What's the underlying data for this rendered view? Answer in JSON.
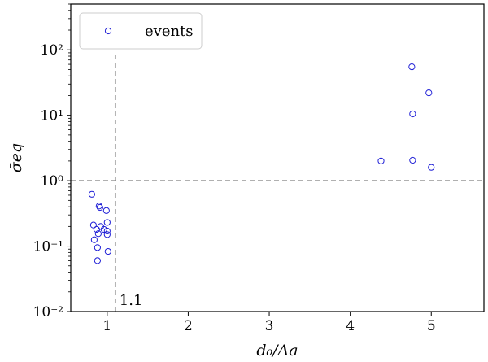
{
  "chart_data": {
    "type": "scatter",
    "xlabel": "d₀/Δa",
    "ylabel": "σ̄eq",
    "yscale": "log",
    "xlim": [
      0.55,
      5.65
    ],
    "ylim": [
      0.01,
      500
    ],
    "xticks": [
      {
        "value": 1,
        "label": "1"
      },
      {
        "value": 2,
        "label": "2"
      },
      {
        "value": 3,
        "label": "3"
      },
      {
        "value": 4,
        "label": "4"
      },
      {
        "value": 5,
        "label": "5"
      }
    ],
    "yticks": [
      {
        "value": 0.01,
        "label": "10⁻²"
      },
      {
        "value": 0.1,
        "label": "10⁻¹"
      },
      {
        "value": 1,
        "label": "10⁰"
      },
      {
        "value": 10,
        "label": "10¹"
      },
      {
        "value": 100,
        "label": "10²"
      }
    ],
    "grid": false,
    "legend": {
      "placement": "top-left",
      "entries": [
        "events"
      ]
    },
    "series": [
      {
        "name": "events",
        "color": "#1f1fd6",
        "marker": "open-circle",
        "points": [
          {
            "x": 0.81,
            "y": 0.62
          },
          {
            "x": 0.83,
            "y": 0.21
          },
          {
            "x": 0.84,
            "y": 0.125
          },
          {
            "x": 0.87,
            "y": 0.18
          },
          {
            "x": 0.88,
            "y": 0.095
          },
          {
            "x": 0.88,
            "y": 0.06
          },
          {
            "x": 0.89,
            "y": 0.155
          },
          {
            "x": 0.9,
            "y": 0.41
          },
          {
            "x": 0.91,
            "y": 0.39
          },
          {
            "x": 0.92,
            "y": 0.2
          },
          {
            "x": 0.96,
            "y": 0.18
          },
          {
            "x": 0.99,
            "y": 0.35
          },
          {
            "x": 1.0,
            "y": 0.23
          },
          {
            "x": 1.0,
            "y": 0.17
          },
          {
            "x": 1.0,
            "y": 0.15
          },
          {
            "x": 1.01,
            "y": 0.083
          },
          {
            "x": 4.38,
            "y": 2.0
          },
          {
            "x": 4.76,
            "y": 55
          },
          {
            "x": 4.77,
            "y": 10.5
          },
          {
            "x": 4.77,
            "y": 2.05
          },
          {
            "x": 4.97,
            "y": 22
          },
          {
            "x": 5.0,
            "y": 1.6
          }
        ]
      }
    ],
    "reference_lines": [
      {
        "orientation": "horizontal",
        "value": 1,
        "style": "dashed",
        "color": "#808080"
      },
      {
        "orientation": "vertical",
        "value": 1.1,
        "style": "dashed",
        "color": "#808080",
        "label": "1.1"
      }
    ]
  }
}
